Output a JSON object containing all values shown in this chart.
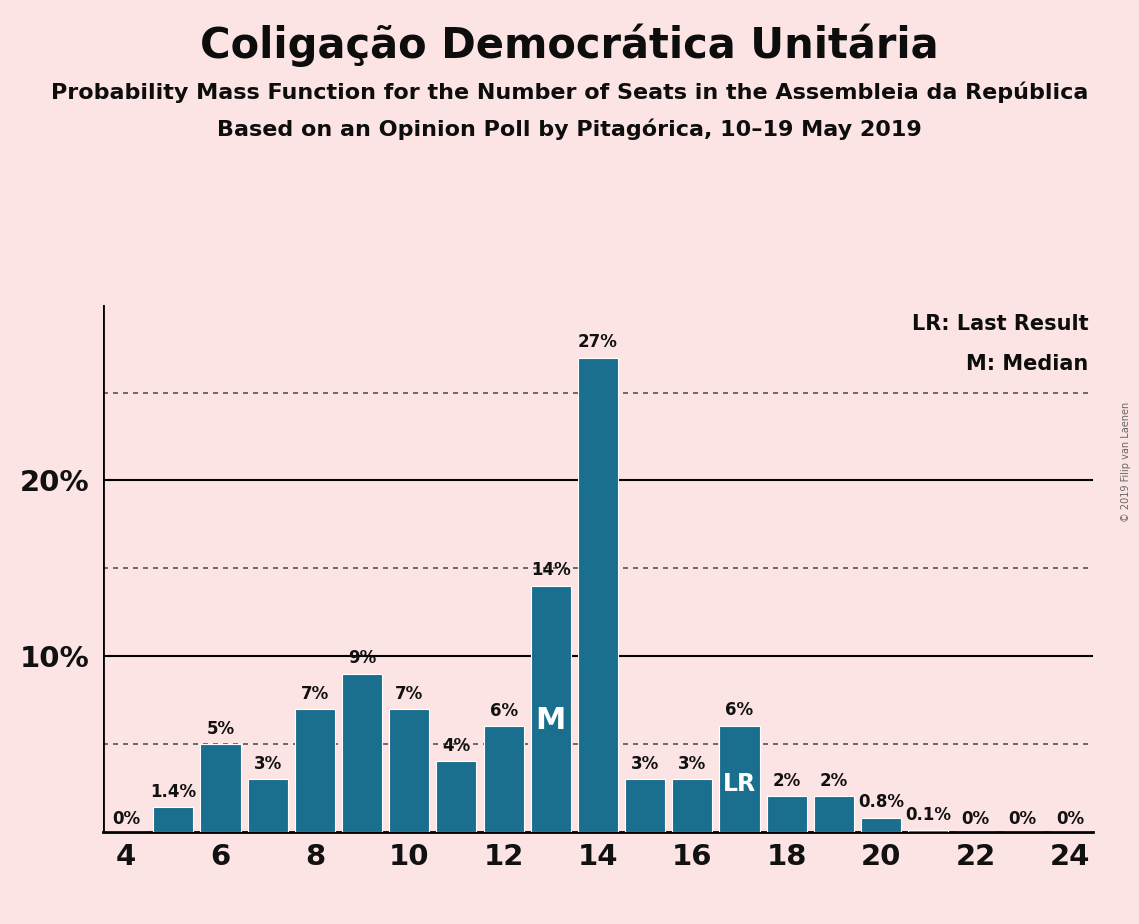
{
  "title": "Coligação Democrática Unitária",
  "subtitle1": "Probability Mass Function for the Number of Seats in the Assembleia da República",
  "subtitle2": "Based on an Opinion Poll by Pitagórica, 10–19 May 2019",
  "copyright": "© 2019 Filip van Laenen",
  "seats": [
    4,
    5,
    6,
    7,
    8,
    9,
    10,
    11,
    12,
    13,
    14,
    15,
    16,
    17,
    18,
    19,
    20,
    21,
    22,
    23,
    24
  ],
  "values": [
    0.0,
    1.4,
    5.0,
    3.0,
    7.0,
    9.0,
    7.0,
    4.0,
    6.0,
    14.0,
    27.0,
    3.0,
    3.0,
    6.0,
    2.0,
    2.0,
    0.8,
    0.1,
    0.0,
    0.0,
    0.0
  ],
  "labels": [
    "0%",
    "1.4%",
    "5%",
    "3%",
    "7%",
    "9%",
    "7%",
    "4%",
    "6%",
    "14%",
    "27%",
    "3%",
    "3%",
    "6%",
    "2%",
    "2%",
    "0.8%",
    "0.1%",
    "0%",
    "0%",
    "0%"
  ],
  "bar_color": "#1a6e8e",
  "background_color": "#fce4e4",
  "median_seat": 13,
  "lr_seat": 17,
  "dotted_lines": [
    5.0,
    15.0,
    25.0
  ],
  "legend_lr": "LR: Last Result",
  "legend_m": "M: Median",
  "title_fontsize": 30,
  "subtitle_fontsize": 16,
  "bar_label_fontsize": 12,
  "axis_fontsize": 21
}
